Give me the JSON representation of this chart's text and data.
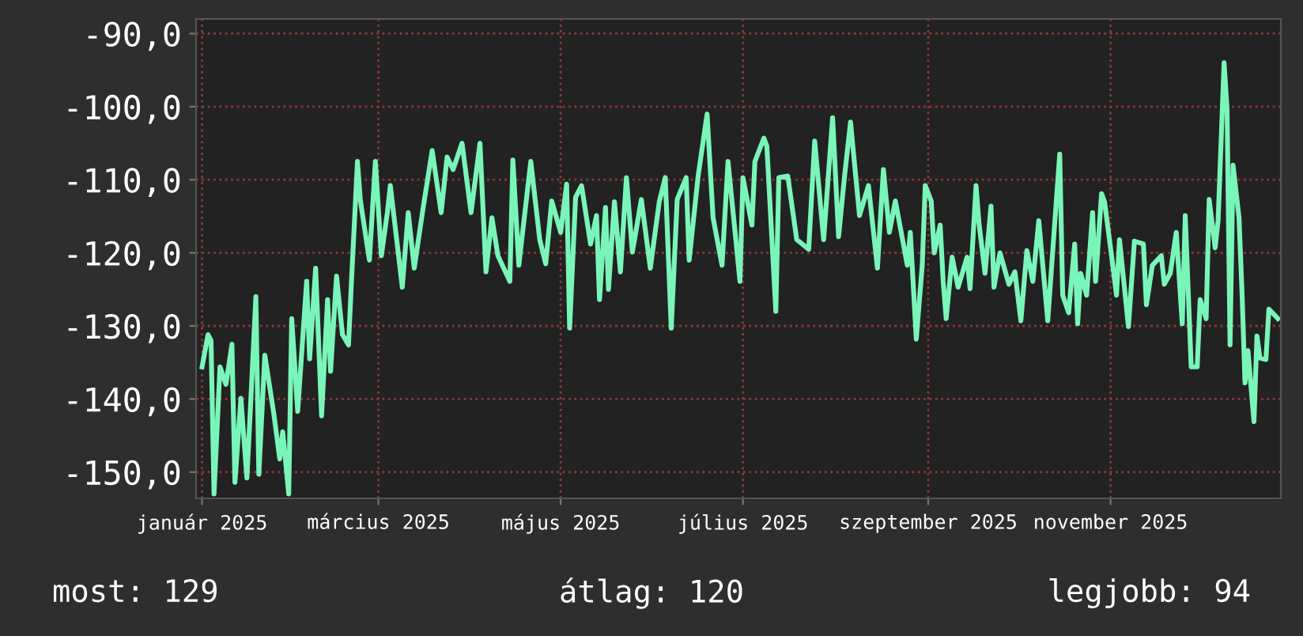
{
  "chart_data": {
    "type": "line",
    "x": [
      "2025-01-01",
      "2025-01-03",
      "2025-01-04",
      "2025-01-05",
      "2025-01-07",
      "2025-01-09",
      "2025-01-11",
      "2025-01-12",
      "2025-01-14",
      "2025-01-16",
      "2025-01-17",
      "2025-01-19",
      "2025-01-20",
      "2025-01-22",
      "2025-01-25",
      "2025-01-27",
      "2025-01-28",
      "2025-01-30",
      "2025-01-31",
      "2025-02-02",
      "2025-02-05",
      "2025-02-06",
      "2025-02-08",
      "2025-02-10",
      "2025-02-12",
      "2025-02-13",
      "2025-02-15",
      "2025-02-17",
      "2025-02-19",
      "2025-02-20",
      "2025-02-22",
      "2025-02-23",
      "2025-02-26",
      "2025-02-28",
      "2025-03-02",
      "2025-03-04",
      "2025-03-05",
      "2025-03-09",
      "2025-03-11",
      "2025-03-13",
      "2025-03-16",
      "2025-03-19",
      "2025-03-22",
      "2025-03-24",
      "2025-03-26",
      "2025-03-29",
      "2025-04-01",
      "2025-04-04",
      "2025-04-06",
      "2025-04-08",
      "2025-04-10",
      "2025-04-14",
      "2025-04-15",
      "2025-04-17",
      "2025-04-21",
      "2025-04-24",
      "2025-04-26",
      "2025-04-28",
      "2025-05-01",
      "2025-05-03",
      "2025-05-04",
      "2025-05-06",
      "2025-05-08",
      "2025-05-11",
      "2025-05-13",
      "2025-05-14",
      "2025-05-16",
      "2025-05-17",
      "2025-05-19",
      "2025-05-21",
      "2025-05-23",
      "2025-05-25",
      "2025-05-28",
      "2025-05-31",
      "2025-06-03",
      "2025-06-05",
      "2025-06-07",
      "2025-06-09",
      "2025-06-12",
      "2025-06-13",
      "2025-06-16",
      "2025-06-19",
      "2025-06-21",
      "2025-06-24",
      "2025-06-26",
      "2025-06-30",
      "2025-07-01",
      "2025-07-04",
      "2025-07-05",
      "2025-07-08",
      "2025-07-09",
      "2025-07-12",
      "2025-07-13",
      "2025-07-16",
      "2025-07-17",
      "2025-07-19",
      "2025-07-23",
      "2025-07-25",
      "2025-07-28",
      "2025-07-31",
      "2025-08-02",
      "2025-08-04",
      "2025-08-06",
      "2025-08-09",
      "2025-08-12",
      "2025-08-15",
      "2025-08-17",
      "2025-08-19",
      "2025-08-21",
      "2025-08-25",
      "2025-08-26",
      "2025-08-28",
      "2025-08-30",
      "2025-08-31",
      "2025-09-02",
      "2025-09-03",
      "2025-09-05",
      "2025-09-06",
      "2025-09-07",
      "2025-09-09",
      "2025-09-11",
      "2025-09-14",
      "2025-09-15",
      "2025-09-17",
      "2025-09-18",
      "2025-09-20",
      "2025-09-22",
      "2025-09-23",
      "2025-09-25",
      "2025-09-28",
      "2025-09-30",
      "2025-10-02",
      "2025-10-04",
      "2025-10-06",
      "2025-10-08",
      "2025-10-11",
      "2025-10-13",
      "2025-10-15",
      "2025-10-16",
      "2025-10-18",
      "2025-10-20",
      "2025-10-21",
      "2025-10-22",
      "2025-10-24",
      "2025-10-26",
      "2025-10-27",
      "2025-10-29",
      "2025-10-30",
      "2025-11-01",
      "2025-11-03",
      "2025-11-04",
      "2025-11-07",
      "2025-11-09",
      "2025-11-12",
      "2025-11-13",
      "2025-11-15",
      "2025-11-18",
      "2025-11-19",
      "2025-11-21",
      "2025-11-23",
      "2025-11-25",
      "2025-11-26",
      "2025-11-28",
      "2025-11-30",
      "2025-12-01",
      "2025-12-03",
      "2025-12-04",
      "2025-12-06",
      "2025-12-07",
      "2025-12-09",
      "2025-12-10",
      "2025-12-11",
      "2025-12-12",
      "2025-12-14",
      "2025-12-15",
      "2025-12-16",
      "2025-12-17",
      "2025-12-19",
      "2025-12-20",
      "2025-12-21",
      "2025-12-23",
      "2025-12-24",
      "2025-12-27"
    ],
    "series": [
      {
        "color": "#7af5b9",
        "values": [
          -135.6,
          -131.2,
          -132,
          -153,
          -135.6,
          -138,
          -132.5,
          -151.4,
          -139.9,
          -150.8,
          -142.8,
          -126,
          -150.3,
          -134,
          -142,
          -148.2,
          -144.5,
          -153,
          -129,
          -141.7,
          -123.9,
          -134.5,
          -122.1,
          -142.3,
          -126.4,
          -136.2,
          -123.2,
          -131.2,
          -132.6,
          -123.9,
          -107.5,
          -112.9,
          -121,
          -107.5,
          -120.4,
          -114.5,
          -110.8,
          -124.7,
          -114.5,
          -122.1,
          -113.8,
          -106,
          -114.5,
          -106.9,
          -108.6,
          -105,
          -114.5,
          -105,
          -122.6,
          -115.2,
          -120.4,
          -123.9,
          -107.3,
          -121.7,
          -107.5,
          -118.2,
          -121.5,
          -112.9,
          -117.2,
          -110.6,
          -130.3,
          -112.4,
          -110.8,
          -118.8,
          -114.9,
          -126.4,
          -113.8,
          -125,
          -113,
          -122.6,
          -109.7,
          -119.9,
          -112.7,
          -122.1,
          -113,
          -109.7,
          -130.3,
          -112.7,
          -109.7,
          -121,
          -109.5,
          -101,
          -115.2,
          -121.7,
          -107.5,
          -123.9,
          -109.7,
          -116.2,
          -107.5,
          -104.3,
          -105.4,
          -128,
          -109.7,
          -109.5,
          -112.4,
          -118.2,
          -119.5,
          -104.7,
          -118.2,
          -101.5,
          -117.8,
          -109.5,
          -102.1,
          -114.9,
          -110.8,
          -122.1,
          -108.6,
          -117.2,
          -112.9,
          -121.7,
          -117.2,
          -131.8,
          -121.7,
          -110.8,
          -112.9,
          -120,
          -116.2,
          -123.9,
          -129,
          -120.6,
          -124.7,
          -120.6,
          -124.9,
          -110.8,
          -116,
          -122.8,
          -113.6,
          -124.7,
          -120,
          -124.3,
          -122.6,
          -129.3,
          -119.7,
          -123.9,
          -115.6,
          -129.3,
          -117.8,
          -106.5,
          -125.8,
          -128.2,
          -118.8,
          -129.7,
          -122.8,
          -125.8,
          -114.5,
          -123.9,
          -111.9,
          -113,
          -119.3,
          -125.8,
          -118.2,
          -130.1,
          -118.4,
          -118.8,
          -127.1,
          -121.7,
          -120.4,
          -124.3,
          -122.8,
          -117.2,
          -129.7,
          -114.9,
          -135.6,
          -135.6,
          -126.4,
          -129,
          -112.7,
          -119.3,
          -115.6,
          -94,
          -100.4,
          -132.6,
          -108,
          -115.2,
          -125.4,
          -137.8,
          -133.4,
          -143.1,
          -131.4,
          -134.4,
          -134.6,
          -127.7,
          -129
        ]
      }
    ],
    "xlim": [
      "2024-12-30",
      "2025-12-28"
    ],
    "xticks": [
      {
        "value": "2025-01-01",
        "label": "január 2025"
      },
      {
        "value": "2025-03-01",
        "label": "március 2025"
      },
      {
        "value": "2025-05-01",
        "label": "május 2025"
      },
      {
        "value": "2025-07-01",
        "label": "július 2025"
      },
      {
        "value": "2025-09-01",
        "label": "szeptember 2025"
      },
      {
        "value": "2025-11-01",
        "label": "november 2025"
      }
    ],
    "ylim": [
      -153.6,
      -88
    ],
    "yticks": [
      {
        "value": -90,
        "label": "-90,0"
      },
      {
        "value": -100,
        "label": "-100,0"
      },
      {
        "value": -110,
        "label": "-110,0"
      },
      {
        "value": -120,
        "label": "-120,0"
      },
      {
        "value": -130,
        "label": "-130,0"
      },
      {
        "value": -140,
        "label": "-140,0"
      },
      {
        "value": -150,
        "label": "-150,0"
      }
    ],
    "grid": true,
    "line_style": "solid",
    "annotations": [
      "most: 129",
      "átlag: 120",
      "legjobb: 94"
    ]
  }
}
